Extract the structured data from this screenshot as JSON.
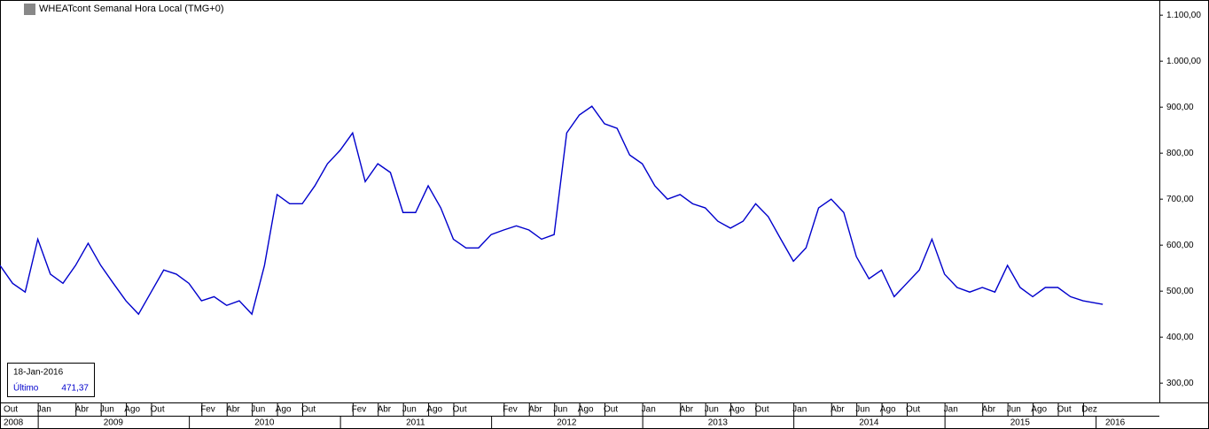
{
  "chart_data": {
    "type": "line",
    "title": "WHEATcont Semanal Hora Local (TMG+0)",
    "x": [
      "2008-10",
      "2008-11",
      "2008-12",
      "2009-01",
      "2009-02",
      "2009-03",
      "2009-04",
      "2009-05",
      "2009-06",
      "2009-07",
      "2009-08",
      "2009-09",
      "2009-10",
      "2009-11",
      "2009-12",
      "2010-01",
      "2010-02",
      "2010-03",
      "2010-04",
      "2010-05",
      "2010-06",
      "2010-07",
      "2010-08",
      "2010-09",
      "2010-10",
      "2010-11",
      "2010-12",
      "2011-01",
      "2011-02",
      "2011-03",
      "2011-04",
      "2011-05",
      "2011-06",
      "2011-07",
      "2011-08",
      "2011-09",
      "2011-10",
      "2011-11",
      "2011-12",
      "2012-01",
      "2012-02",
      "2012-03",
      "2012-04",
      "2012-05",
      "2012-06",
      "2012-07",
      "2012-08",
      "2012-09",
      "2012-10",
      "2012-11",
      "2012-12",
      "2013-01",
      "2013-02",
      "2013-03",
      "2013-04",
      "2013-05",
      "2013-06",
      "2013-07",
      "2013-08",
      "2013-09",
      "2013-10",
      "2013-11",
      "2013-12",
      "2014-01",
      "2014-02",
      "2014-03",
      "2014-04",
      "2014-05",
      "2014-06",
      "2014-07",
      "2014-08",
      "2014-09",
      "2014-10",
      "2014-11",
      "2014-12",
      "2015-01",
      "2015-02",
      "2015-03",
      "2015-04",
      "2015-05",
      "2015-06",
      "2015-07",
      "2015-08",
      "2015-09",
      "2015-10",
      "2015-11",
      "2015-12",
      "2016-01-18"
    ],
    "series": [
      {
        "name": "WHEATcont",
        "color": "#0000cc",
        "values": [
          556,
          517,
          498,
          613,
          537,
          517,
          556,
          604,
          556,
          517,
          479,
          450,
          498,
          546,
          537,
          517,
          479,
          488,
          469,
          479,
          450,
          556,
          710,
          690,
          690,
          729,
          777,
          806,
          844,
          738,
          777,
          758,
          671,
          671,
          729,
          681,
          613,
          594,
          594,
          623,
          633,
          642,
          633,
          613,
          623,
          844,
          883,
          902,
          864,
          854,
          796,
          777,
          729,
          700,
          710,
          690,
          681,
          652,
          637,
          652,
          690,
          662,
          613,
          565,
          594,
          681,
          700,
          671,
          575,
          527,
          546,
          488,
          517,
          546,
          613,
          537,
          508,
          498,
          508,
          498,
          556,
          508,
          488,
          508,
          508,
          488,
          479,
          471.37
        ]
      }
    ],
    "ylim": [
      258,
      1133
    ],
    "yticks": [
      {
        "value": 300,
        "label": "300,00"
      },
      {
        "value": 400,
        "label": "400,00"
      },
      {
        "value": 500,
        "label": "500,00"
      },
      {
        "value": 600,
        "label": "600,00"
      },
      {
        "value": 700,
        "label": "700,00"
      },
      {
        "value": 800,
        "label": "800,00"
      },
      {
        "value": 900,
        "label": "900,00"
      },
      {
        "value": 1000,
        "label": "1.000,00"
      },
      {
        "value": 1100,
        "label": "1.100,00"
      }
    ],
    "xticks": [
      {
        "value": "2008-10",
        "label": "Out"
      },
      {
        "value": "2009-01",
        "label": "Jan"
      },
      {
        "value": "2009-04",
        "label": "Abr"
      },
      {
        "value": "2009-06",
        "label": "Jun"
      },
      {
        "value": "2009-08",
        "label": "Ago"
      },
      {
        "value": "2009-10",
        "label": "Out"
      },
      {
        "value": "2010-02",
        "label": "Fev"
      },
      {
        "value": "2010-04",
        "label": "Abr"
      },
      {
        "value": "2010-06",
        "label": "Jun"
      },
      {
        "value": "2010-08",
        "label": "Ago"
      },
      {
        "value": "2010-10",
        "label": "Out"
      },
      {
        "value": "2011-02",
        "label": "Fev"
      },
      {
        "value": "2011-04",
        "label": "Abr"
      },
      {
        "value": "2011-06",
        "label": "Jun"
      },
      {
        "value": "2011-08",
        "label": "Ago"
      },
      {
        "value": "2011-10",
        "label": "Out"
      },
      {
        "value": "2012-02",
        "label": "Fev"
      },
      {
        "value": "2012-04",
        "label": "Abr"
      },
      {
        "value": "2012-06",
        "label": "Jun"
      },
      {
        "value": "2012-08",
        "label": "Ago"
      },
      {
        "value": "2012-10",
        "label": "Out"
      },
      {
        "value": "2013-01",
        "label": "Jan"
      },
      {
        "value": "2013-04",
        "label": "Abr"
      },
      {
        "value": "2013-06",
        "label": "Jun"
      },
      {
        "value": "2013-08",
        "label": "Ago"
      },
      {
        "value": "2013-10",
        "label": "Out"
      },
      {
        "value": "2014-01",
        "label": "Jan"
      },
      {
        "value": "2014-04",
        "label": "Abr"
      },
      {
        "value": "2014-06",
        "label": "Jun"
      },
      {
        "value": "2014-08",
        "label": "Ago"
      },
      {
        "value": "2014-10",
        "label": "Out"
      },
      {
        "value": "2015-01",
        "label": "Jan"
      },
      {
        "value": "2015-04",
        "label": "Abr"
      },
      {
        "value": "2015-06",
        "label": "Jun"
      },
      {
        "value": "2015-08",
        "label": "Ago"
      },
      {
        "value": "2015-10",
        "label": "Out"
      },
      {
        "value": "2015-12",
        "label": "Dez"
      }
    ],
    "years": [
      "2008",
      "2009",
      "2010",
      "2011",
      "2012",
      "2013",
      "2014",
      "2015",
      "2016"
    ],
    "info_date": "18-Jan-2016",
    "info_label": "Último",
    "info_value": "471,37"
  }
}
